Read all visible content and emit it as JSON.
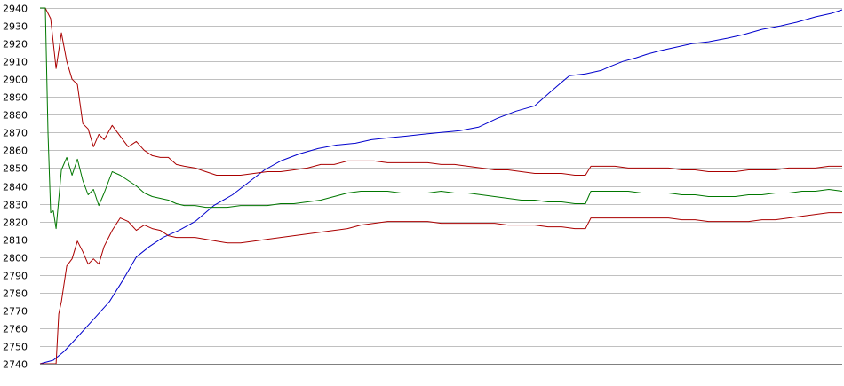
{
  "chart_data": {
    "type": "line",
    "title": "",
    "xlabel": "",
    "ylabel": "",
    "ylim": [
      2740,
      2940
    ],
    "xlim": [
      0,
      300
    ],
    "grid": true,
    "legend": "none",
    "y_ticks": [
      2740,
      2750,
      2760,
      2770,
      2780,
      2790,
      2800,
      2810,
      2820,
      2830,
      2840,
      2850,
      2860,
      2870,
      2880,
      2890,
      2900,
      2910,
      2920,
      2930,
      2940
    ],
    "y_tick_labels": [
      "2740",
      "2750",
      "2760",
      "2770",
      "2780",
      "2790",
      "2800",
      "2810",
      "2820",
      "2830",
      "2840",
      "2850",
      "2860",
      "2870",
      "2880",
      "2890",
      "2900",
      "2910",
      "2920",
      "2930",
      "2940"
    ],
    "series": [
      {
        "color": "#0000cc",
        "x": [
          0,
          5,
          9,
          14,
          20,
          26,
          31,
          36,
          41,
          46,
          52,
          58,
          65,
          72,
          78,
          84,
          90,
          97,
          104,
          111,
          118,
          124,
          130,
          137,
          143,
          150,
          157,
          164,
          171,
          178,
          185,
          191,
          198,
          204,
          210,
          213,
          218,
          223,
          227,
          232,
          238,
          244,
          250,
          257,
          263,
          270,
          277,
          283,
          290,
          296,
          300
        ],
        "y": [
          2740,
          2742,
          2747,
          2755,
          2765,
          2775,
          2787,
          2800,
          2806,
          2811,
          2815,
          2820,
          2829,
          2835,
          2842,
          2849,
          2854,
          2858,
          2861,
          2863,
          2864,
          2866,
          2867,
          2868,
          2869,
          2870,
          2871,
          2873,
          2878,
          2882,
          2885,
          2893,
          2902,
          2903,
          2905,
          2907,
          2910,
          2912,
          2914,
          2916,
          2918,
          2920,
          2921,
          2923,
          2925,
          2928,
          2930,
          2932,
          2935,
          2937,
          2939
        ]
      },
      {
        "color": "#aa0000",
        "x": [
          0,
          2,
          4,
          6,
          8,
          10,
          12,
          14,
          16,
          18,
          20,
          22,
          24,
          27,
          30,
          33,
          36,
          39,
          42,
          45,
          48,
          51,
          54,
          58,
          62,
          66,
          70,
          75,
          80,
          85,
          90,
          95,
          100,
          105,
          110,
          115,
          120,
          125,
          130,
          135,
          140,
          145,
          150,
          155,
          160,
          165,
          170,
          175,
          180,
          185,
          190,
          195,
          200,
          204,
          206,
          210,
          215,
          220,
          225,
          230,
          235,
          240,
          245,
          250,
          255,
          260,
          265,
          270,
          275,
          280,
          285,
          290,
          295,
          300
        ],
        "y": [
          2940,
          2940,
          2934,
          2906,
          2926,
          2910,
          2900,
          2897,
          2875,
          2872,
          2862,
          2869,
          2866,
          2874,
          2868,
          2862,
          2865,
          2860,
          2857,
          2856,
          2856,
          2852,
          2851,
          2850,
          2848,
          2846,
          2846,
          2846,
          2847,
          2848,
          2848,
          2849,
          2850,
          2852,
          2852,
          2854,
          2854,
          2854,
          2853,
          2853,
          2853,
          2853,
          2852,
          2852,
          2851,
          2850,
          2849,
          2849,
          2848,
          2847,
          2847,
          2847,
          2846,
          2846,
          2851,
          2851,
          2851,
          2850,
          2850,
          2850,
          2850,
          2849,
          2849,
          2848,
          2848,
          2848,
          2849,
          2849,
          2849,
          2850,
          2850,
          2850,
          2851,
          2851
        ]
      },
      {
        "color": "#007700",
        "x": [
          0,
          2,
          3,
          4,
          5,
          6,
          8,
          10,
          12,
          14,
          16,
          18,
          20,
          22,
          24,
          27,
          30,
          33,
          36,
          39,
          42,
          45,
          48,
          51,
          54,
          58,
          62,
          66,
          70,
          75,
          80,
          85,
          90,
          95,
          100,
          105,
          110,
          115,
          120,
          125,
          130,
          135,
          140,
          145,
          150,
          155,
          160,
          165,
          170,
          175,
          180,
          185,
          190,
          195,
          200,
          204,
          206,
          210,
          215,
          220,
          225,
          230,
          235,
          240,
          245,
          250,
          255,
          260,
          265,
          270,
          275,
          280,
          285,
          290,
          295,
          300
        ],
        "y": [
          2940,
          2940,
          2870,
          2825,
          2826,
          2816,
          2849,
          2856,
          2846,
          2855,
          2843,
          2835,
          2838,
          2829,
          2836,
          2848,
          2846,
          2843,
          2840,
          2836,
          2834,
          2833,
          2832,
          2830,
          2829,
          2829,
          2828,
          2828,
          2828,
          2829,
          2829,
          2829,
          2830,
          2830,
          2831,
          2832,
          2834,
          2836,
          2837,
          2837,
          2837,
          2836,
          2836,
          2836,
          2837,
          2836,
          2836,
          2835,
          2834,
          2833,
          2832,
          2832,
          2831,
          2831,
          2830,
          2830,
          2837,
          2837,
          2837,
          2837,
          2836,
          2836,
          2836,
          2835,
          2835,
          2834,
          2834,
          2834,
          2835,
          2835,
          2836,
          2836,
          2837,
          2837,
          2838,
          2837
        ]
      },
      {
        "color": "#aa0000",
        "x": [
          0,
          4,
          6,
          7,
          8,
          10,
          12,
          14,
          16,
          18,
          20,
          22,
          24,
          27,
          30,
          33,
          36,
          39,
          42,
          45,
          48,
          51,
          54,
          58,
          62,
          66,
          70,
          75,
          80,
          85,
          90,
          95,
          100,
          105,
          110,
          115,
          120,
          125,
          130,
          135,
          140,
          145,
          150,
          155,
          160,
          165,
          170,
          175,
          180,
          185,
          190,
          195,
          200,
          204,
          206,
          210,
          215,
          220,
          225,
          230,
          235,
          240,
          245,
          250,
          255,
          260,
          265,
          270,
          275,
          280,
          285,
          290,
          295,
          300
        ],
        "y": [
          2740,
          2740,
          2740,
          2768,
          2775,
          2795,
          2799,
          2809,
          2803,
          2796,
          2799,
          2796,
          2806,
          2815,
          2822,
          2820,
          2815,
          2818,
          2816,
          2815,
          2812,
          2811,
          2811,
          2811,
          2810,
          2809,
          2808,
          2808,
          2809,
          2810,
          2811,
          2812,
          2813,
          2814,
          2815,
          2816,
          2818,
          2819,
          2820,
          2820,
          2820,
          2820,
          2819,
          2819,
          2819,
          2819,
          2819,
          2818,
          2818,
          2818,
          2817,
          2817,
          2816,
          2816,
          2822,
          2822,
          2822,
          2822,
          2822,
          2822,
          2822,
          2821,
          2821,
          2820,
          2820,
          2820,
          2820,
          2821,
          2821,
          2822,
          2823,
          2824,
          2825,
          2825
        ]
      }
    ]
  }
}
